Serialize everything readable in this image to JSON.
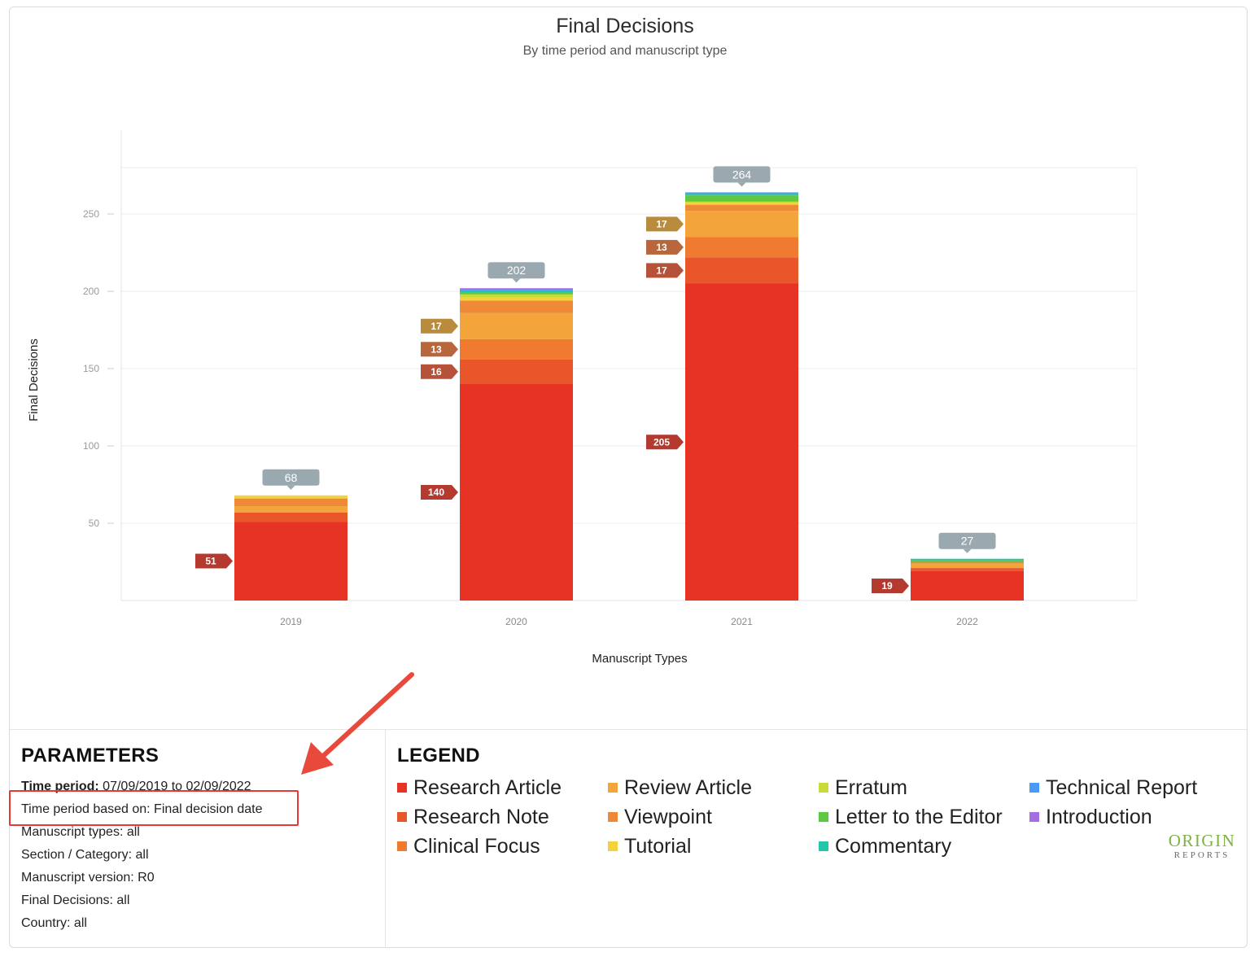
{
  "colors": {
    "Research Article": "#e63324",
    "Research Note": "#e8562a",
    "Clinical Focus": "#ef7a30",
    "Review Article": "#f3a43a",
    "Viewpoint": "#ee8a37",
    "Tutorial": "#f4d23b",
    "Erratum": "#c9da3c",
    "Letter to the Editor": "#5ec940",
    "Commentary": "#1fc7a8",
    "Technical Report": "#4a9cf2",
    "Introduction": "#a56ee0",
    "callout_total": "#9aa8b0",
    "callout_research_article": "#b43a30",
    "callout_research_note": "#b6523a",
    "callout_clinical_focus": "#b8663b",
    "callout_review_article": "#b98b3c",
    "highlight": "#e53935"
  },
  "chart_data": {
    "type": "bar",
    "stacked": true,
    "title": "Final Decisions",
    "subtitle": "By time period and manuscript type",
    "xlabel": "Manuscript Types",
    "ylabel": "Final Decisions",
    "ylim": [
      0,
      300
    ],
    "yticks": [
      50,
      100,
      150,
      200,
      250
    ],
    "grid": true,
    "categories": [
      "2019",
      "2020",
      "2021",
      "2022"
    ],
    "totals": [
      68,
      202,
      264,
      27
    ],
    "series": [
      {
        "name": "Research Article",
        "values": [
          51,
          140,
          205,
          19
        ],
        "labels": [
          true,
          true,
          true,
          true
        ]
      },
      {
        "name": "Research Note",
        "values": [
          6,
          16,
          17,
          2
        ],
        "labels": [
          false,
          true,
          true,
          false
        ]
      },
      {
        "name": "Clinical Focus",
        "values": [
          0,
          13,
          13,
          0
        ],
        "labels": [
          false,
          true,
          true,
          false
        ]
      },
      {
        "name": "Review Article",
        "values": [
          4,
          17,
          17,
          3
        ],
        "labels": [
          false,
          true,
          true,
          false
        ]
      },
      {
        "name": "Viewpoint",
        "values": [
          5,
          8,
          4,
          1
        ],
        "labels": [
          false,
          false,
          false,
          false
        ]
      },
      {
        "name": "Tutorial",
        "values": [
          2,
          2,
          1,
          0
        ],
        "labels": [
          false,
          false,
          false,
          false
        ]
      },
      {
        "name": "Erratum",
        "values": [
          0,
          2,
          1,
          0
        ],
        "labels": [
          false,
          false,
          false,
          false
        ]
      },
      {
        "name": "Letter to the Editor",
        "values": [
          0,
          1,
          4,
          1
        ],
        "labels": [
          false,
          false,
          false,
          false
        ]
      },
      {
        "name": "Commentary",
        "values": [
          0,
          1,
          1,
          1
        ],
        "labels": [
          false,
          false,
          false,
          false
        ]
      },
      {
        "name": "Technical Report",
        "values": [
          0,
          1,
          1,
          0
        ],
        "labels": [
          false,
          false,
          false,
          false
        ]
      },
      {
        "name": "Introduction",
        "values": [
          0,
          1,
          0,
          0
        ],
        "labels": [
          false,
          false,
          false,
          false
        ]
      }
    ]
  },
  "parameters": {
    "heading": "PARAMETERS",
    "time_period_label": "Time period:",
    "time_period_value": "07/09/2019 to 02/09/2022",
    "based_on": "Time period based on: Final decision date",
    "manuscript_types": "Manuscript types: all",
    "section_category": "Section / Category: all",
    "manuscript_version": "Manuscript version: R0",
    "final_decisions": "Final Decisions: all",
    "country": "Country: all"
  },
  "legend": {
    "heading": "LEGEND",
    "items": [
      "Research Article",
      "Review Article",
      "Erratum",
      "Technical Report",
      "Research Note",
      "Viewpoint",
      "Letter to the Editor",
      "Introduction",
      "Clinical Focus",
      "Tutorial",
      "Commentary"
    ]
  },
  "logo": {
    "main": "ORIGIN",
    "sub": "REPORTS"
  }
}
